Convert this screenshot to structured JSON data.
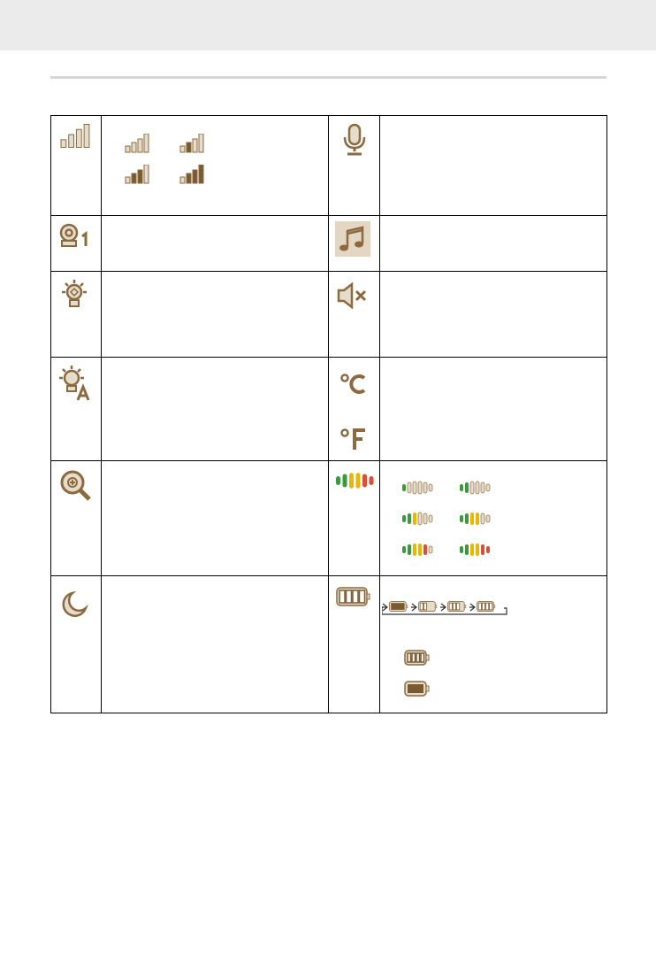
{
  "colors": {
    "icon_brown": "#8a6a3e",
    "icon_fill_light": "#e6dccb",
    "icon_fill_dark": "#7a5a30",
    "vol_green": "#3c9a3c",
    "vol_yellow": "#e8b800",
    "vol_red": "#d9503a",
    "music_bg": "#e3d6c2"
  },
  "rows": [
    {
      "left_icon": "signal-strength-icon",
      "left_detail": {
        "signal_levels": [
          1,
          2,
          3,
          4
        ]
      },
      "right_icon": "microphone-icon"
    },
    {
      "left_icon": "camera-1-icon",
      "right_icon": "music-note-icon"
    },
    {
      "left_icon": "night-light-icon",
      "right_icon": "speaker-mute-icon"
    },
    {
      "left_icon": "auto-light-icon",
      "right_icon": "temperature-celsius-icon",
      "right_icon_2": "temperature-fahrenheit-icon"
    },
    {
      "left_icon": "zoom-in-icon",
      "right_icon": "volume-level-icon",
      "right_detail": {
        "volume_levels": [
          1,
          2,
          3,
          4,
          5,
          6
        ]
      }
    },
    {
      "left_icon": "moon-icon",
      "right_icon": "battery-icon",
      "right_detail": {
        "charging_sequence_levels": [
          1,
          2,
          3,
          4
        ],
        "battery_states": [
          4,
          1
        ]
      }
    }
  ]
}
